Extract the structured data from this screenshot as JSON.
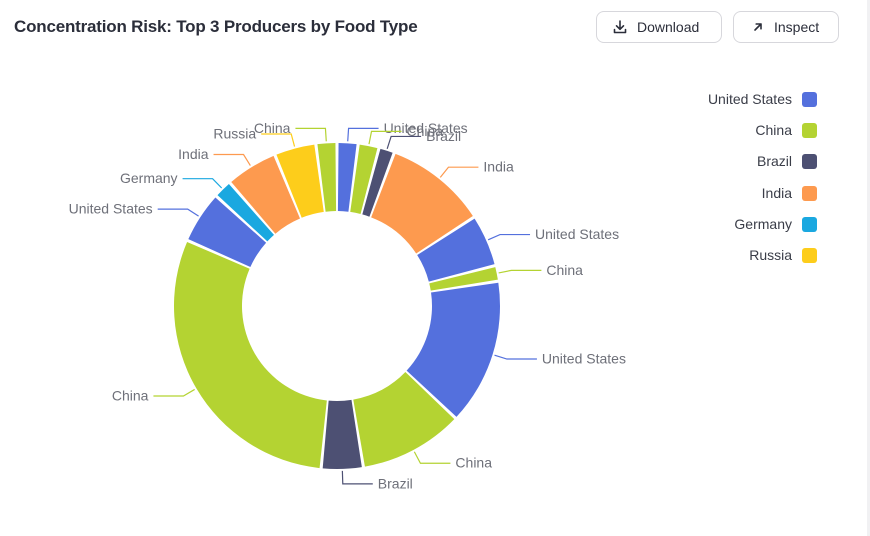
{
  "header": {
    "title": "Concentration Risk: Top 3 Producers by Food Type",
    "download_label": "Download",
    "inspect_label": "Inspect"
  },
  "colors": {
    "United States": "#5470dd",
    "China": "#b4d332",
    "Brazil": "#4d5073",
    "India": "#fd9a4f",
    "Germany": "#1aa8e0",
    "Russia": "#fdcd1b"
  },
  "chart_data": {
    "type": "pie",
    "donut": true,
    "title": "Concentration Risk: Top 3 Producers by Food Type",
    "legend_position": "top-right",
    "legend": [
      "United States",
      "China",
      "Brazil",
      "India",
      "Germany",
      "Russia"
    ],
    "slices": [
      {
        "label": "United States",
        "value": 2.0
      },
      {
        "label": "China",
        "value": 2.0
      },
      {
        "label": "Brazil",
        "value": 1.5
      },
      {
        "label": "India",
        "value": 9.8
      },
      {
        "label": "United States",
        "value": 5.0
      },
      {
        "label": "China",
        "value": 1.5
      },
      {
        "label": "United States",
        "value": 14.0
      },
      {
        "label": "China",
        "value": 10.0
      },
      {
        "label": "Brazil",
        "value": 4.0
      },
      {
        "label": "China",
        "value": 29.0
      },
      {
        "label": "United States",
        "value": 5.0
      },
      {
        "label": "Germany",
        "value": 1.8
      },
      {
        "label": "India",
        "value": 5.0
      },
      {
        "label": "Russia",
        "value": 4.0
      },
      {
        "label": "China",
        "value": 2.0
      }
    ]
  }
}
